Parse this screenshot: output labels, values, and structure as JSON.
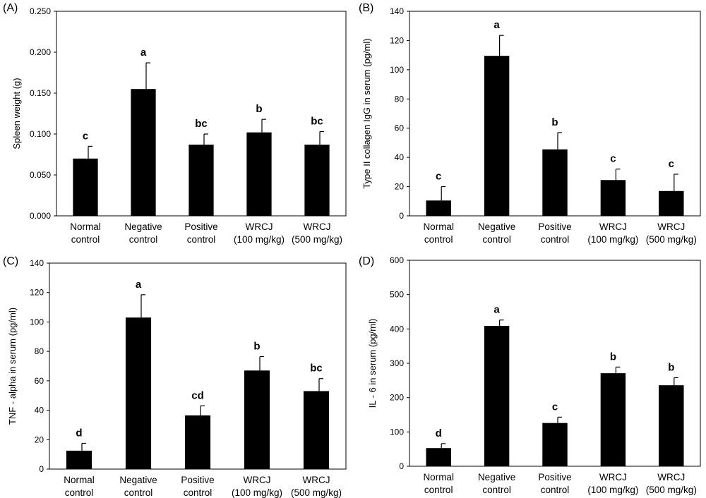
{
  "chart_data": [
    {
      "type": "bar",
      "panel_label": "(A)",
      "ylabel": "Spleen weight (g)",
      "ylim": [
        0,
        0.25
      ],
      "yticks": [
        "0.000",
        "0.050",
        "0.100",
        "0.150",
        "0.200",
        "0.250"
      ],
      "categories": [
        [
          "Normal",
          "control"
        ],
        [
          "Negative",
          "control"
        ],
        [
          "Positive",
          "control"
        ],
        [
          "WRCJ",
          "(100 mg/kg)"
        ],
        [
          "WRCJ",
          "(500 mg/kg)"
        ]
      ],
      "values": [
        0.07,
        0.155,
        0.087,
        0.102,
        0.087
      ],
      "errors": [
        0.015,
        0.032,
        0.013,
        0.016,
        0.016
      ],
      "significance": [
        "c",
        "a",
        "bc",
        "b",
        "bc"
      ]
    },
    {
      "type": "bar",
      "panel_label": "(B)",
      "ylabel": "Type II collagen IgG in serum (pg/ml)",
      "ylim": [
        0,
        140
      ],
      "yticks": [
        "0",
        "20",
        "40",
        "60",
        "80",
        "100",
        "120",
        "140"
      ],
      "categories": [
        [
          "Normal",
          "control"
        ],
        [
          "Negative",
          "control"
        ],
        [
          "Positive",
          "control"
        ],
        [
          "WRCJ",
          "(100 mg/kg)"
        ],
        [
          "WRCJ",
          "(500 mg/kg)"
        ]
      ],
      "values": [
        10.5,
        109.5,
        45.5,
        24.5,
        17
      ],
      "errors": [
        9.5,
        14,
        11.5,
        7.5,
        11.5
      ],
      "significance": [
        "c",
        "a",
        "b",
        "c",
        "c"
      ]
    },
    {
      "type": "bar",
      "panel_label": "(C)",
      "ylabel": "TNF - alpha in serum (pg/ml)",
      "ylim": [
        0,
        140
      ],
      "yticks": [
        "0",
        "20",
        "40",
        "60",
        "80",
        "100",
        "120",
        "140"
      ],
      "categories": [
        [
          "Normal",
          "control"
        ],
        [
          "Negative",
          "control"
        ],
        [
          "Positive",
          "control"
        ],
        [
          "WRCJ",
          "(100 mg/kg)"
        ],
        [
          "WRCJ",
          "(500 mg/kg)"
        ]
      ],
      "values": [
        12.5,
        103,
        36.5,
        67,
        53
      ],
      "errors": [
        5,
        15.5,
        6.5,
        9.5,
        8.5
      ],
      "significance": [
        "d",
        "a",
        "cd",
        "b",
        "bc"
      ]
    },
    {
      "type": "bar",
      "panel_label": "(D)",
      "ylabel": "IL - 6 in serum (pg/ml)",
      "ylim": [
        0,
        600
      ],
      "yticks": [
        "0",
        "100",
        "200",
        "300",
        "400",
        "500",
        "600"
      ],
      "categories": [
        [
          "Normal",
          "control"
        ],
        [
          "Negative",
          "control"
        ],
        [
          "Positive",
          "control"
        ],
        [
          "WRCJ",
          "(100 mg/kg)"
        ],
        [
          "WRCJ",
          "(500 mg/kg)"
        ]
      ],
      "values": [
        53,
        409,
        126,
        271,
        236
      ],
      "errors": [
        13,
        17,
        17,
        18,
        22
      ],
      "significance": [
        "d",
        "a",
        "c",
        "b",
        "b"
      ]
    }
  ]
}
